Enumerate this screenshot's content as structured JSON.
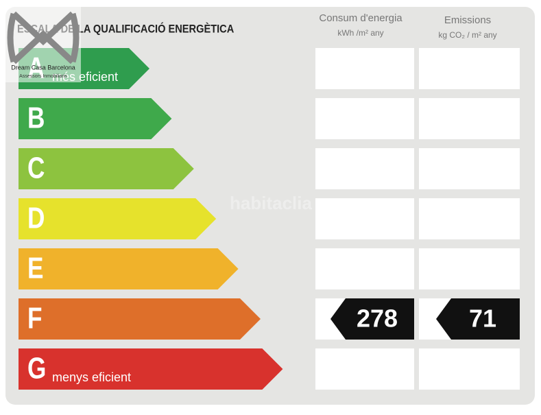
{
  "title": "ESCALA DE LA QUALIFICACIÓ ENERGÈTICA",
  "columns": [
    {
      "title": "Consum d'energia",
      "unit": "kWh /m² any"
    },
    {
      "title": "Emissions",
      "unit": "kg CO₂ / m² any"
    }
  ],
  "classes": [
    {
      "letter": "A",
      "color": "#2f9d4e",
      "label": "més eficient"
    },
    {
      "letter": "B",
      "color": "#3fa94b"
    },
    {
      "letter": "C",
      "color": "#8dc33f"
    },
    {
      "letter": "D",
      "color": "#e6e22c"
    },
    {
      "letter": "E",
      "color": "#f0b22b"
    },
    {
      "letter": "F",
      "color": "#de6f2a"
    },
    {
      "letter": "G",
      "color": "#d8322d",
      "label": "menys eficient"
    }
  ],
  "rated_class": "F",
  "values": [
    278,
    71
  ],
  "watermark": "habitaclia",
  "logo": {
    "name": "Dream Casa Barcelona",
    "tagline": "Assessors Inmobiliaris"
  }
}
